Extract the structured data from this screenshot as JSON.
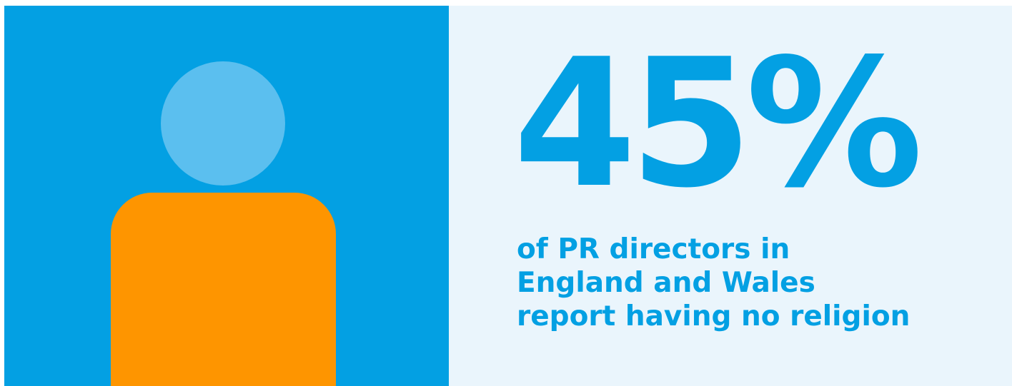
{
  "stat": {
    "value": "45%",
    "caption_lines": [
      "of PR directors in",
      "England and Wales",
      "report having no religion"
    ]
  },
  "figure": {
    "icon": "person-icon",
    "colors": {
      "background": "#03a0e3",
      "head": "#5bbfef",
      "body": "#fe9500"
    }
  },
  "colors": {
    "accent": "#03a0e3",
    "panel_background": "#eaf5fc"
  }
}
